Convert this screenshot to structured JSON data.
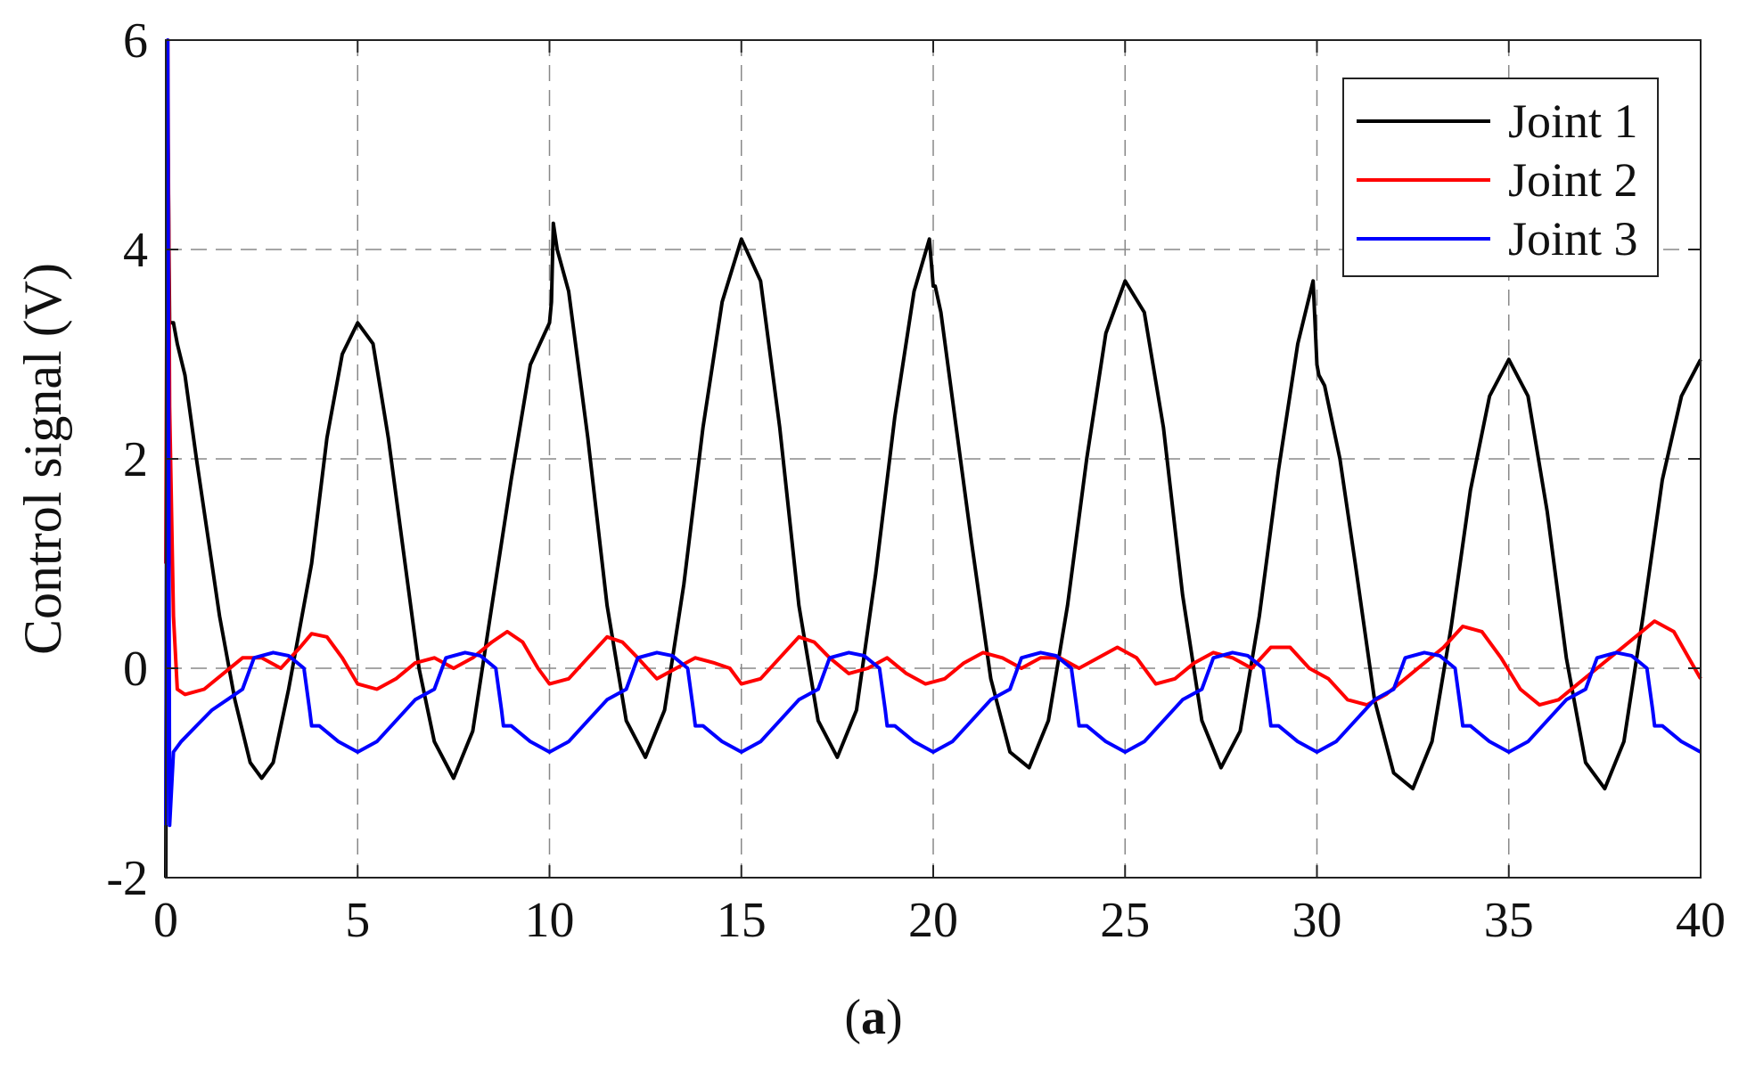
{
  "caption": {
    "open": "(",
    "letter": "a",
    "close": ")"
  },
  "chart_data": {
    "type": "line",
    "title": "",
    "xlabel": "",
    "ylabel": "Control signal (V)",
    "xlim": [
      0,
      40
    ],
    "ylim": [
      -2,
      6
    ],
    "xticks": [
      0,
      5,
      10,
      15,
      20,
      25,
      30,
      35,
      40
    ],
    "yticks": [
      -2,
      0,
      2,
      4,
      6
    ],
    "grid": true,
    "legend_position": "top-right",
    "series": [
      {
        "name": "Joint 1",
        "color": "#000000",
        "x": [
          0,
          0.05,
          0.1,
          0.2,
          0.3,
          0.5,
          0.8,
          1.2,
          1.4,
          1.8,
          2.2,
          2.5,
          2.8,
          3.2,
          3.8,
          4.2,
          4.6,
          5.0,
          5.4,
          5.8,
          6.2,
          6.6,
          7.0,
          7.5,
          8.0,
          8.5,
          9.0,
          9.5,
          10.0,
          10.05,
          10.1,
          10.2,
          10.5,
          11.0,
          11.5,
          12.0,
          12.5,
          13.0,
          13.5,
          14.0,
          14.5,
          15.0,
          15.5,
          16.0,
          16.5,
          17.0,
          17.5,
          18.0,
          18.5,
          19.0,
          19.5,
          19.9,
          20.0,
          20.05,
          20.2,
          20.6,
          21.0,
          21.5,
          22.0,
          22.5,
          23.0,
          23.5,
          24.0,
          24.5,
          25.0,
          25.5,
          26.0,
          26.5,
          27.0,
          27.5,
          28.0,
          28.5,
          29.0,
          29.5,
          29.9,
          30.0,
          30.05,
          30.2,
          30.6,
          31.0,
          31.5,
          32.0,
          32.5,
          33.0,
          33.5,
          34.0,
          34.5,
          35.0,
          35.5,
          36.0,
          36.5,
          37.0,
          37.5,
          38.0,
          38.5,
          39.0,
          39.5,
          40.0
        ],
        "y": [
          -2.0,
          5.3,
          3.3,
          3.3,
          3.1,
          2.8,
          2.0,
          1.0,
          0.5,
          -0.3,
          -0.9,
          -1.05,
          -0.9,
          -0.2,
          1.0,
          2.2,
          3.0,
          3.3,
          3.1,
          2.2,
          1.1,
          0.0,
          -0.7,
          -1.05,
          -0.6,
          0.6,
          1.8,
          2.9,
          3.3,
          3.5,
          4.25,
          4.0,
          3.6,
          2.2,
          0.6,
          -0.5,
          -0.85,
          -0.4,
          0.8,
          2.3,
          3.5,
          4.1,
          3.7,
          2.3,
          0.6,
          -0.5,
          -0.85,
          -0.4,
          0.9,
          2.4,
          3.6,
          4.1,
          3.65,
          3.65,
          3.4,
          2.3,
          1.2,
          -0.1,
          -0.8,
          -0.95,
          -0.5,
          0.6,
          2.0,
          3.2,
          3.7,
          3.4,
          2.3,
          0.7,
          -0.5,
          -0.95,
          -0.6,
          0.5,
          1.9,
          3.1,
          3.7,
          2.9,
          2.8,
          2.7,
          2.0,
          1.0,
          -0.3,
          -1.0,
          -1.15,
          -0.7,
          0.4,
          1.7,
          2.6,
          2.95,
          2.6,
          1.5,
          0.1,
          -0.9,
          -1.15,
          -0.7,
          0.5,
          1.8,
          2.6,
          2.95
        ]
      },
      {
        "name": "Joint 2",
        "color": "#ff0000",
        "x": [
          0,
          0.05,
          0.1,
          0.2,
          0.3,
          0.5,
          1.0,
          1.5,
          2.0,
          2.5,
          3.0,
          3.5,
          3.8,
          4.2,
          4.6,
          5.0,
          5.5,
          6.0,
          6.5,
          7.0,
          7.5,
          8.0,
          8.5,
          8.9,
          9.3,
          9.7,
          10.0,
          10.5,
          11.0,
          11.5,
          11.9,
          12.3,
          12.8,
          13.3,
          13.8,
          14.3,
          14.7,
          15.0,
          15.5,
          16.0,
          16.5,
          16.9,
          17.3,
          17.8,
          18.3,
          18.8,
          19.3,
          19.8,
          20.3,
          20.8,
          21.3,
          21.8,
          22.3,
          22.8,
          23.3,
          23.8,
          24.3,
          24.8,
          25.3,
          25.8,
          26.3,
          26.8,
          27.3,
          27.8,
          28.3,
          28.8,
          29.3,
          29.8,
          30.3,
          30.8,
          31.3,
          31.8,
          32.3,
          32.8,
          33.3,
          33.8,
          34.3,
          34.8,
          35.3,
          35.8,
          36.3,
          36.8,
          37.3,
          37.8,
          38.3,
          38.8,
          39.3,
          40.0
        ],
        "y": [
          1.0,
          6.0,
          2.5,
          0.5,
          -0.2,
          -0.25,
          -0.2,
          -0.05,
          0.1,
          0.1,
          0.0,
          0.2,
          0.33,
          0.3,
          0.1,
          -0.15,
          -0.2,
          -0.1,
          0.05,
          0.1,
          0.0,
          0.1,
          0.25,
          0.35,
          0.25,
          0.0,
          -0.15,
          -0.1,
          0.1,
          0.3,
          0.25,
          0.1,
          -0.1,
          0.0,
          0.1,
          0.05,
          0.0,
          -0.15,
          -0.1,
          0.1,
          0.3,
          0.25,
          0.1,
          -0.05,
          0.0,
          0.1,
          -0.05,
          -0.15,
          -0.1,
          0.05,
          0.15,
          0.1,
          0.0,
          0.1,
          0.1,
          0.0,
          0.1,
          0.2,
          0.1,
          -0.15,
          -0.1,
          0.05,
          0.15,
          0.1,
          0.0,
          0.2,
          0.2,
          0.0,
          -0.1,
          -0.3,
          -0.35,
          -0.25,
          -0.1,
          0.05,
          0.2,
          0.4,
          0.35,
          0.1,
          -0.2,
          -0.35,
          -0.3,
          -0.15,
          0.0,
          0.15,
          0.3,
          0.45,
          0.35,
          -0.1
        ]
      },
      {
        "name": "Joint 3",
        "color": "#0000ff",
        "x": [
          0,
          0.05,
          0.1,
          0.2,
          0.4,
          0.8,
          1.2,
          1.6,
          2.0,
          2.3,
          2.5,
          2.8,
          3.2,
          3.6,
          3.75,
          3.8,
          4.0,
          4.5,
          5.0,
          5.5,
          6.0,
          6.5,
          7.0,
          7.3,
          7.5,
          7.8,
          8.2,
          8.6,
          8.75,
          8.8,
          9.0,
          9.5,
          10.0,
          10.5,
          11.0,
          11.5,
          12.0,
          12.3,
          12.5,
          12.8,
          13.2,
          13.6,
          13.75,
          13.8,
          14.0,
          14.5,
          15.0,
          15.5,
          16.0,
          16.5,
          17.0,
          17.3,
          17.5,
          17.8,
          18.2,
          18.6,
          18.75,
          18.8,
          19.0,
          19.5,
          20.0,
          20.5,
          21.0,
          21.5,
          22.0,
          22.3,
          22.5,
          22.8,
          23.2,
          23.6,
          23.75,
          23.8,
          24.0,
          24.5,
          25.0,
          25.5,
          26.0,
          26.5,
          27.0,
          27.3,
          27.5,
          27.8,
          28.2,
          28.6,
          28.75,
          28.8,
          29.0,
          29.5,
          30.0,
          30.5,
          31.0,
          31.5,
          32.0,
          32.3,
          32.5,
          32.8,
          33.2,
          33.6,
          33.75,
          33.8,
          34.0,
          34.5,
          35.0,
          35.5,
          36.0,
          36.5,
          37.0,
          37.3,
          37.5,
          37.8,
          38.2,
          38.6,
          38.75,
          38.8,
          39.0,
          39.5,
          40.0
        ],
        "y": [
          -1.5,
          6.0,
          -1.5,
          -0.8,
          -0.7,
          -0.55,
          -0.4,
          -0.3,
          -0.2,
          0.1,
          0.12,
          0.15,
          0.12,
          0.0,
          -0.4,
          -0.55,
          -0.55,
          -0.7,
          -0.8,
          -0.7,
          -0.5,
          -0.3,
          -0.2,
          0.1,
          0.12,
          0.15,
          0.12,
          0.0,
          -0.4,
          -0.55,
          -0.55,
          -0.7,
          -0.8,
          -0.7,
          -0.5,
          -0.3,
          -0.2,
          0.1,
          0.12,
          0.15,
          0.12,
          0.0,
          -0.4,
          -0.55,
          -0.55,
          -0.7,
          -0.8,
          -0.7,
          -0.5,
          -0.3,
          -0.2,
          0.1,
          0.12,
          0.15,
          0.12,
          0.0,
          -0.4,
          -0.55,
          -0.55,
          -0.7,
          -0.8,
          -0.7,
          -0.5,
          -0.3,
          -0.2,
          0.1,
          0.12,
          0.15,
          0.12,
          0.0,
          -0.4,
          -0.55,
          -0.55,
          -0.7,
          -0.8,
          -0.7,
          -0.5,
          -0.3,
          -0.2,
          0.1,
          0.12,
          0.15,
          0.12,
          0.0,
          -0.4,
          -0.55,
          -0.55,
          -0.7,
          -0.8,
          -0.7,
          -0.5,
          -0.3,
          -0.2,
          0.1,
          0.12,
          0.15,
          0.12,
          0.0,
          -0.4,
          -0.55,
          -0.55,
          -0.7,
          -0.8,
          -0.7,
          -0.5,
          -0.3,
          -0.2,
          0.1,
          0.12,
          0.15,
          0.12,
          0.0,
          -0.4,
          -0.55,
          -0.55,
          -0.7,
          -0.8
        ]
      }
    ]
  }
}
